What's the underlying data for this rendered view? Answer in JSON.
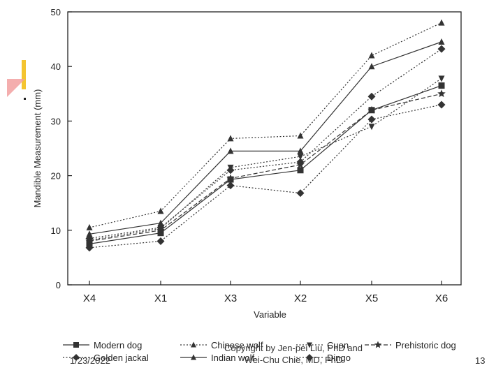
{
  "footer": {
    "date": "1/23/2022",
    "copyright_line1": "Copyright by Jen-pei Liu, PhD and",
    "copyright_line2": "Wei-Chu Chie, MD, PhD",
    "page": "13"
  },
  "chart_data": {
    "type": "line",
    "xlabel": "Variable",
    "ylabel": "Mandible Measurement (mm)",
    "categories": [
      "X4",
      "X1",
      "X3",
      "X2",
      "X5",
      "X6"
    ],
    "ylim": [
      0,
      50
    ],
    "yticks": [
      0,
      10,
      20,
      30,
      40,
      50
    ],
    "grid": false,
    "legend_position": "bottom",
    "series": [
      {
        "name": "Modern dog",
        "marker": "square",
        "line": "solid",
        "values": [
          7.5,
          9.5,
          19.3,
          21.0,
          32.0,
          36.5
        ]
      },
      {
        "name": "Golden jackal",
        "marker": "diamond",
        "line": "dotted",
        "values": [
          6.8,
          8.0,
          18.2,
          16.8,
          30.3,
          33.0
        ]
      },
      {
        "name": "Chinese wolf",
        "marker": "triangle",
        "line": "dotted",
        "values": [
          10.5,
          13.5,
          26.8,
          27.3,
          42.0,
          48.0
        ]
      },
      {
        "name": "Indian wolf",
        "marker": "triangle",
        "line": "solid",
        "values": [
          9.3,
          11.3,
          24.5,
          24.5,
          40.0,
          44.5
        ]
      },
      {
        "name": "Cuon",
        "marker": "triangle-down",
        "line": "dotted",
        "values": [
          8.2,
          10.3,
          21.5,
          23.5,
          29.0,
          37.8
        ]
      },
      {
        "name": "Dingo",
        "marker": "diamond",
        "line": "dotted",
        "values": [
          8.5,
          10.5,
          21.0,
          22.5,
          34.5,
          43.2
        ]
      },
      {
        "name": "Prehistoric dog",
        "marker": "star",
        "line": "dashed",
        "values": [
          8.0,
          10.0,
          19.5,
          22.0,
          32.0,
          35.0
        ]
      }
    ]
  }
}
